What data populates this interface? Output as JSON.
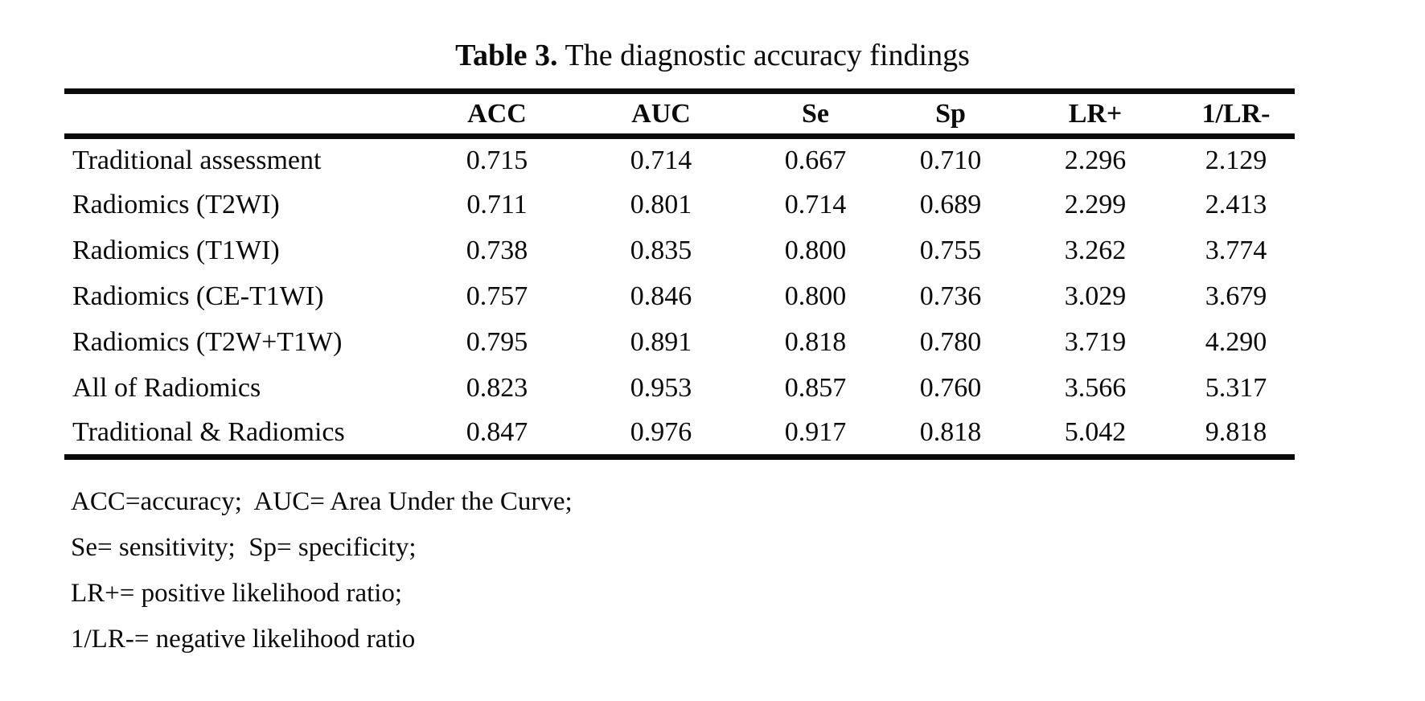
{
  "table": {
    "title_prefix": "Table 3.",
    "title_text": "The diagnostic accuracy findings",
    "columns": [
      "ACC",
      "AUC",
      "Se",
      "Sp",
      "LR+",
      "1/LR-"
    ],
    "rows": [
      {
        "label": "Traditional assessment",
        "values": [
          "0.715",
          "0.714",
          "0.667",
          "0.710",
          "2.296",
          "2.129"
        ]
      },
      {
        "label": "Radiomics (T2WI)",
        "values": [
          "0.711",
          "0.801",
          "0.714",
          "0.689",
          "2.299",
          "2.413"
        ]
      },
      {
        "label": "Radiomics (T1WI)",
        "values": [
          "0.738",
          "0.835",
          "0.800",
          "0.755",
          "3.262",
          "3.774"
        ]
      },
      {
        "label": "Radiomics (CE-T1WI)",
        "values": [
          "0.757",
          "0.846",
          "0.800",
          "0.736",
          "3.029",
          "3.679"
        ]
      },
      {
        "label": "Radiomics (T2W+T1W)",
        "values": [
          "0.795",
          "0.891",
          "0.818",
          "0.780",
          "3.719",
          "4.290"
        ]
      },
      {
        "label": "All of Radiomics",
        "values": [
          "0.823",
          "0.953",
          "0.857",
          "0.760",
          "3.566",
          "5.317"
        ]
      },
      {
        "label": "Traditional & Radiomics",
        "values": [
          "0.847",
          "0.976",
          "0.917",
          "0.818",
          "5.042",
          "9.818"
        ]
      }
    ],
    "footnotes": [
      "ACC=accuracy;  AUC= Area Under the Curve;",
      "Se= sensitivity;  Sp= specificity;",
      "LR+= positive likelihood ratio;",
      "1/LR-= negative likelihood ratio"
    ],
    "colors": {
      "text": "#0a0a0a",
      "background": "#ffffff",
      "rule": "#0a0a0a"
    }
  }
}
